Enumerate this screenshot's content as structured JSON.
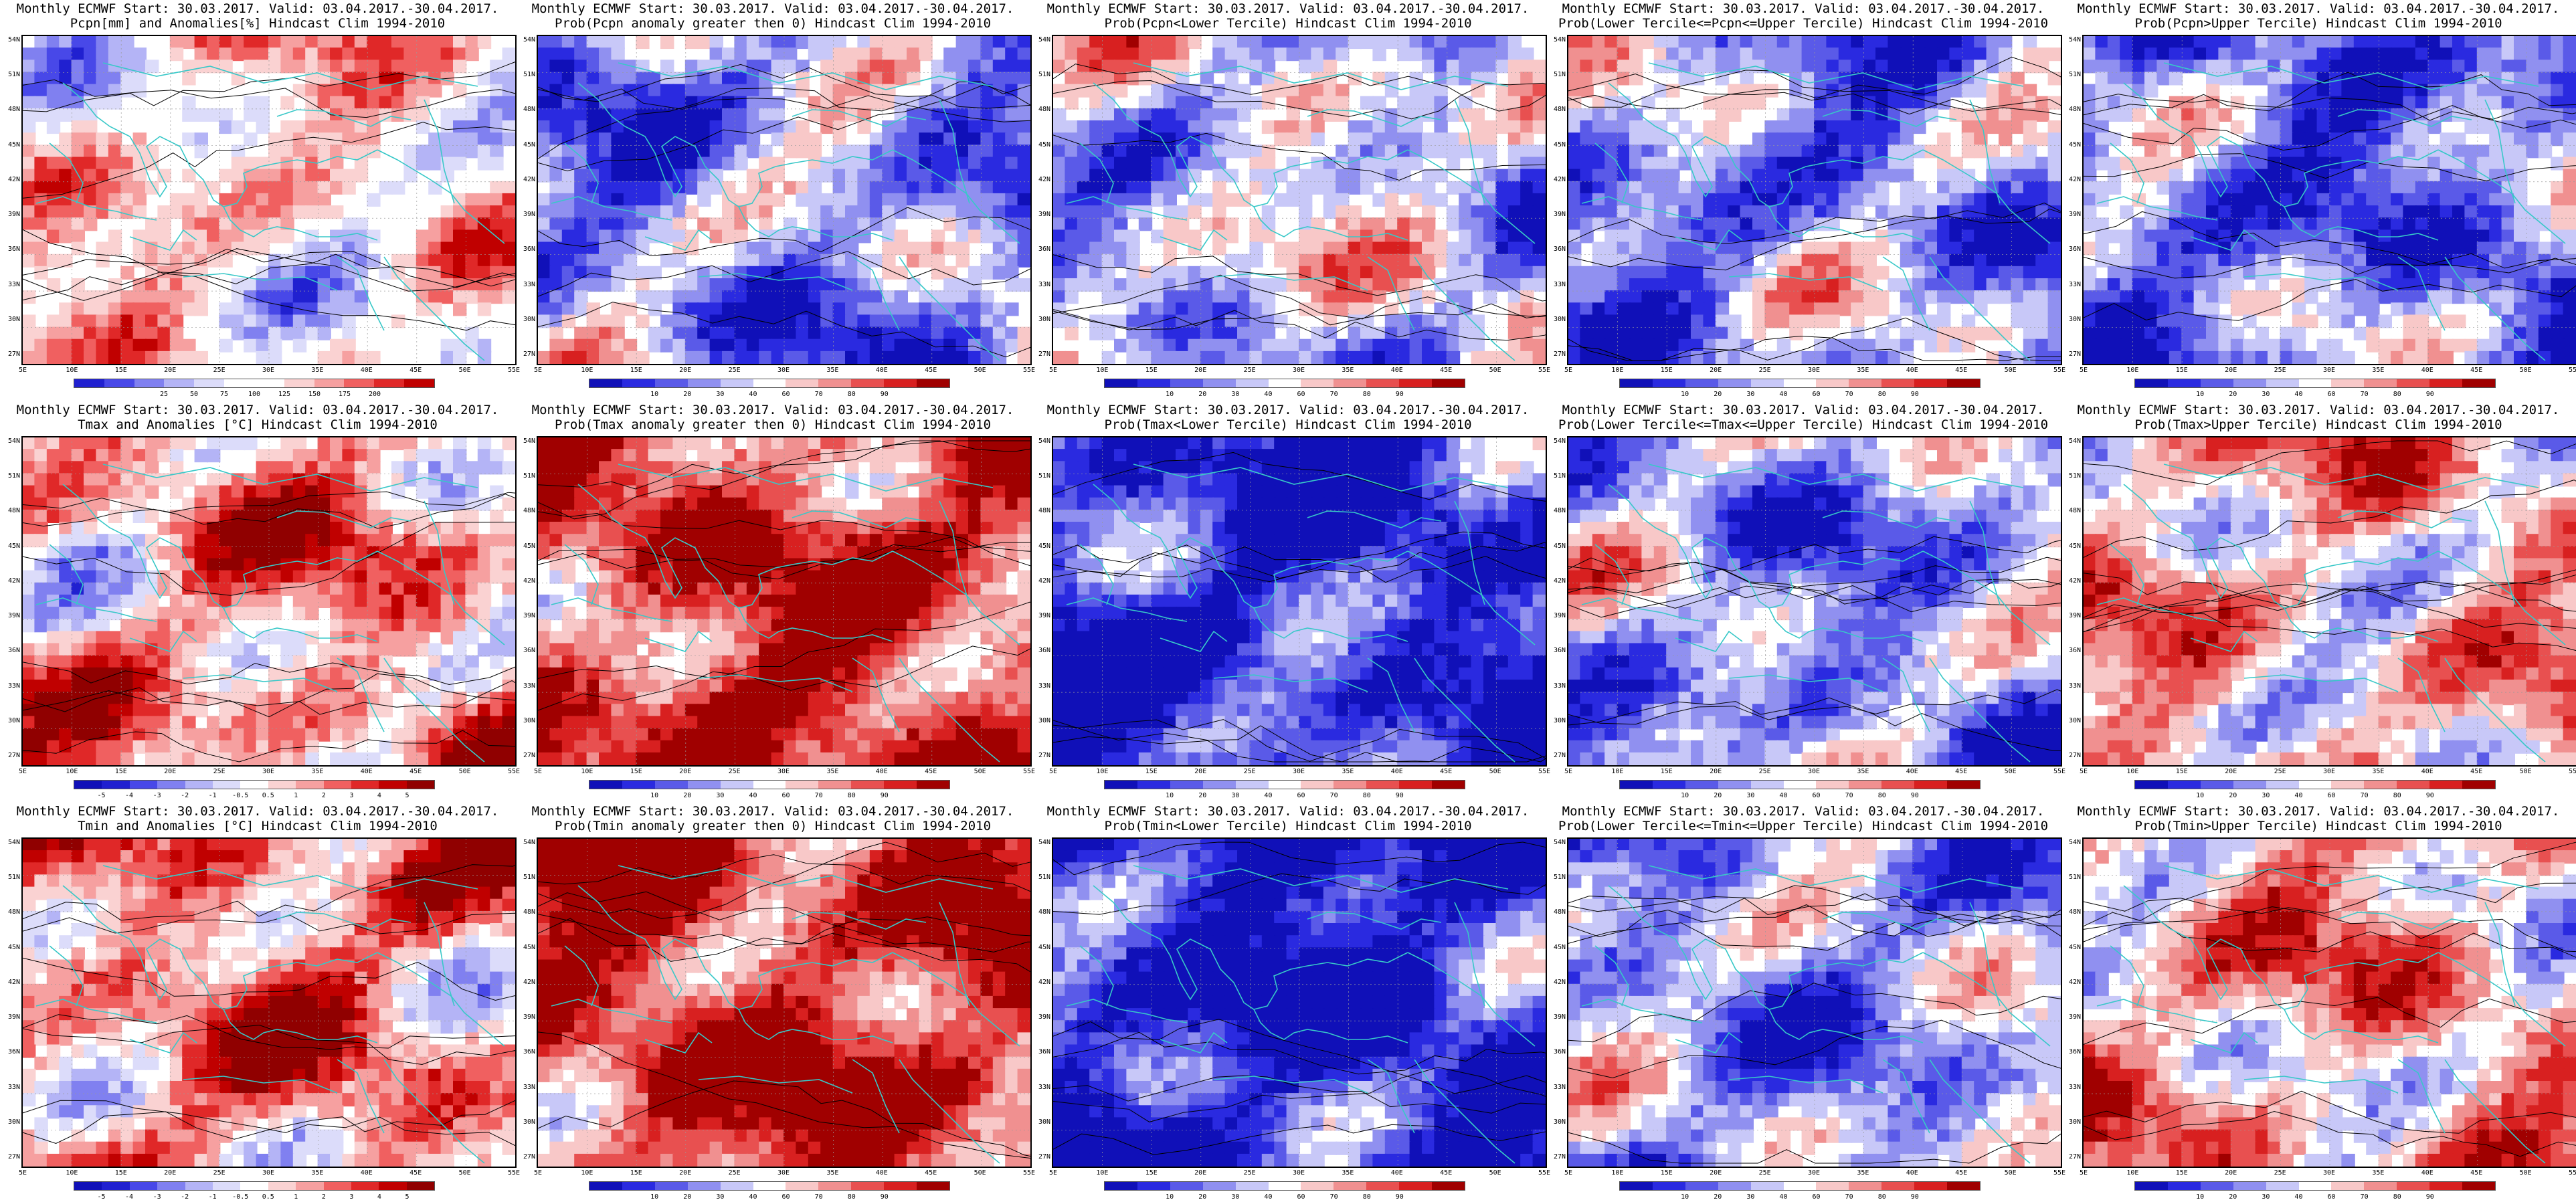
{
  "figure": {
    "rows": [
      {
        "name": "precipitation",
        "panels": [
          {
            "title1": "Monthly ECMWF Start: 30.03.2017. Valid: 03.04.2017.-30.04.2017.",
            "title2": "Pcpn[mm] and Anomalies[%] Hindcast Clim 1994-2010",
            "scale": "anom_pct",
            "bias": 0.15
          },
          {
            "title1": "Monthly ECMWF Start: 30.03.2017. Valid: 03.04.2017.-30.04.2017.",
            "title2": "Prob(Pcpn anomaly greater then 0) Hindcast Clim 1994-2010",
            "scale": "prob",
            "bias": -0.35
          },
          {
            "title1": "Monthly ECMWF Start: 30.03.2017. Valid: 03.04.2017.-30.04.2017.",
            "title2": "Prob(Pcpn<Lower Tercile) Hindcast Clim 1994-2010",
            "scale": "prob",
            "bias": -0.15
          },
          {
            "title1": "Monthly ECMWF Start: 30.03.2017. Valid: 03.04.2017.-30.04.2017.",
            "title2": "Prob(Lower Tercile<=Pcpn<=Upper Tercile) Hindcast Clim 1994-2010",
            "scale": "prob",
            "bias": -0.35
          },
          {
            "title1": "Monthly ECMWF Start: 30.03.2017. Valid: 03.04.2017.-30.04.2017.",
            "title2": "Prob(Pcpn>Upper Tercile) Hindcast Clim 1994-2010",
            "scale": "prob",
            "bias": -0.45
          }
        ]
      },
      {
        "name": "tmax",
        "panels": [
          {
            "title1": "Monthly ECMWF Start: 30.03.2017. Valid: 03.04.2017.-30.04.2017.",
            "title2": "Tmax and Anomalies [°C] Hindcast Clim 1994-2010",
            "scale": "anom_deg",
            "bias": 0.3
          },
          {
            "title1": "Monthly ECMWF Start: 30.03.2017. Valid: 03.04.2017.-30.04.2017.",
            "title2": "Prob(Tmax anomaly greater then 0) Hindcast Clim 1994-2010",
            "scale": "prob",
            "bias": 0.65
          },
          {
            "title1": "Monthly ECMWF Start: 30.03.2017. Valid: 03.04.2017.-30.04.2017.",
            "title2": "Prob(Tmax<Lower Tercile) Hindcast Clim 1994-2010",
            "scale": "prob",
            "bias": -0.75
          },
          {
            "title1": "Monthly ECMWF Start: 30.03.2017. Valid: 03.04.2017.-30.04.2017.",
            "title2": "Prob(Lower Tercile<=Tmax<=Upper Tercile) Hindcast Clim 1994-2010",
            "scale": "prob",
            "bias": -0.3
          },
          {
            "title1": "Monthly ECMWF Start: 30.03.2017. Valid: 03.04.2017.-30.04.2017.",
            "title2": "Prob(Tmax>Upper Tercile) Hindcast Clim 1994-2010",
            "scale": "prob",
            "bias": 0.2
          }
        ]
      },
      {
        "name": "tmin",
        "panels": [
          {
            "title1": "Monthly ECMWF Start: 30.03.2017. Valid: 03.04.2017.-30.04.2017.",
            "title2": "Tmin and Anomalies [°C] Hindcast Clim 1994-2010",
            "scale": "anom_deg",
            "bias": 0.35
          },
          {
            "title1": "Monthly ECMWF Start: 30.03.2017. Valid: 03.04.2017.-30.04.2017.",
            "title2": "Prob(Tmin anomaly greater then 0) Hindcast Clim 1994-2010",
            "scale": "prob",
            "bias": 0.7
          },
          {
            "title1": "Monthly ECMWF Start: 30.03.2017. Valid: 03.04.2017.-30.04.2017.",
            "title2": "Prob(Tmin<Lower Tercile) Hindcast Clim 1994-2010",
            "scale": "prob",
            "bias": -0.8
          },
          {
            "title1": "Monthly ECMWF Start: 30.03.2017. Valid: 03.04.2017.-30.04.2017.",
            "title2": "Prob(Lower Tercile<=Tmin<=Upper Tercile) Hindcast Clim 1994-2010",
            "scale": "prob",
            "bias": -0.3
          },
          {
            "title1": "Monthly ECMWF Start: 30.03.2017. Valid: 03.04.2017.-30.04.2017.",
            "title2": "Prob(Tmin>Upper Tercile) Hindcast Clim 1994-2010",
            "scale": "prob",
            "bias": 0.25
          }
        ]
      }
    ],
    "lat_labels": [
      "54N",
      "51N",
      "48N",
      "45N",
      "42N",
      "39N",
      "36N",
      "33N",
      "30N",
      "27N"
    ],
    "lon_labels": [
      "5E",
      "10E",
      "15E",
      "20E",
      "25E",
      "30E",
      "35E",
      "40E",
      "45E",
      "50E",
      "55E"
    ],
    "colorbars": {
      "anom_pct": {
        "labels": [
          "25",
          "50",
          "75",
          "100",
          "125",
          "150",
          "175",
          "200"
        ],
        "colors": [
          "#2020d0",
          "#4848e8",
          "#8080f0",
          "#b4b4f6",
          "#dcdcfa",
          "#ffffff",
          "#ffffff",
          "#fad2d2",
          "#f6a0a0",
          "#f06060",
          "#e02828",
          "#c00000"
        ]
      },
      "prob": {
        "labels": [
          "10",
          "20",
          "30",
          "40",
          "60",
          "70",
          "80",
          "90"
        ],
        "colors": [
          "#1010b8",
          "#2a2ae0",
          "#5a5ae8",
          "#9090f0",
          "#c8c8f8",
          "#ffffff",
          "#f8c8c8",
          "#f09090",
          "#e85050",
          "#d82020",
          "#a00000"
        ]
      },
      "anom_deg": {
        "labels": [
          "-5",
          "-4",
          "-3",
          "-2",
          "-1",
          "-0.5",
          "0.5",
          "1",
          "2",
          "3",
          "4",
          "5"
        ],
        "colors": [
          "#1010b8",
          "#2020d0",
          "#4848e8",
          "#8080f0",
          "#b4b4f6",
          "#dcdcfa",
          "#ffffff",
          "#fad2d2",
          "#f6a0a0",
          "#f06060",
          "#e02828",
          "#c00000",
          "#900000"
        ]
      }
    },
    "colors": {
      "coast": "#38c8c8",
      "contour": "#000000",
      "frame": "#000000"
    }
  }
}
